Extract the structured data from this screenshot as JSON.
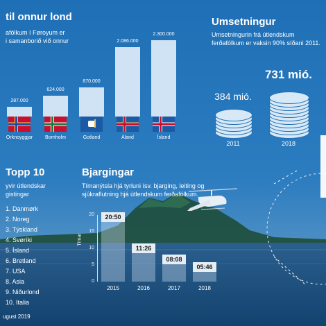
{
  "flights": {
    "title": "til onnur lond",
    "subtitle_lines": [
      "afólkum í Føroyum er",
      "i samanborið við onnur"
    ]
  },
  "umsetningur": {
    "title": "Umsetningur",
    "subtitle_lines": [
      "Umsetningurin frá útlendskum",
      "ferðafólkum er vaksin 90% síðani 2011."
    ]
  },
  "topp": {
    "title": "Topp 10",
    "subtitle_lines": [
      "yvir útlendskar",
      "gistingar"
    ],
    "items": [
      "1. Danmørk",
      "2. Noreg",
      "3. Týskland",
      "4. Svøríki",
      "5. Ísland",
      "6. Bretland",
      "7. USA",
      "8. Asia",
      "9. Niðurlond",
      "10. Italia"
    ]
  },
  "bjargingar": {
    "title": "Bjargingar",
    "subtitle_lines": [
      "Tímanýtsla hjá tyrluni ísv. bjarging, leiting og",
      "sjúkraflutning hjá útlendskum ferðafólkum."
    ]
  },
  "footer": "ugust 2019",
  "icons": [
    "helicopter-icon",
    "coin-stack-icon"
  ],
  "colors": {
    "background": "#1f6fb6",
    "bar": "#cfe3f5"
  },
  "chart_data": [
    {
      "type": "bar",
      "title": "til onnur lond",
      "categories": [
        "Orknoyggjar",
        "Bornholm",
        "Gotland",
        "Áland",
        "Ísland"
      ],
      "values": [
        287000,
        624000,
        870000,
        2086000,
        2300000
      ],
      "value_labels": [
        "287.000",
        "624.000",
        "870.000",
        "2.086.000",
        "2.300.000"
      ],
      "ylim": [
        0,
        2300000
      ]
    },
    {
      "type": "bar",
      "title": "Umsetningur",
      "categories": [
        "2011",
        "2018"
      ],
      "values": [
        384,
        731
      ],
      "value_labels": [
        "384 mió.",
        "731 mió."
      ]
    },
    {
      "type": "bar",
      "title": "Bjargingar",
      "ylabel": "Tímar",
      "yticks": [
        "0",
        "5",
        "10",
        "15",
        "20"
      ],
      "ylim": [
        0,
        20
      ],
      "categories": [
        "2015",
        "2016",
        "2017",
        "2018"
      ],
      "values": [
        20.83,
        11.43,
        8.13,
        5.77
      ],
      "value_labels": [
        "20:50",
        "11:26",
        "08:08",
        "05:46"
      ]
    }
  ]
}
